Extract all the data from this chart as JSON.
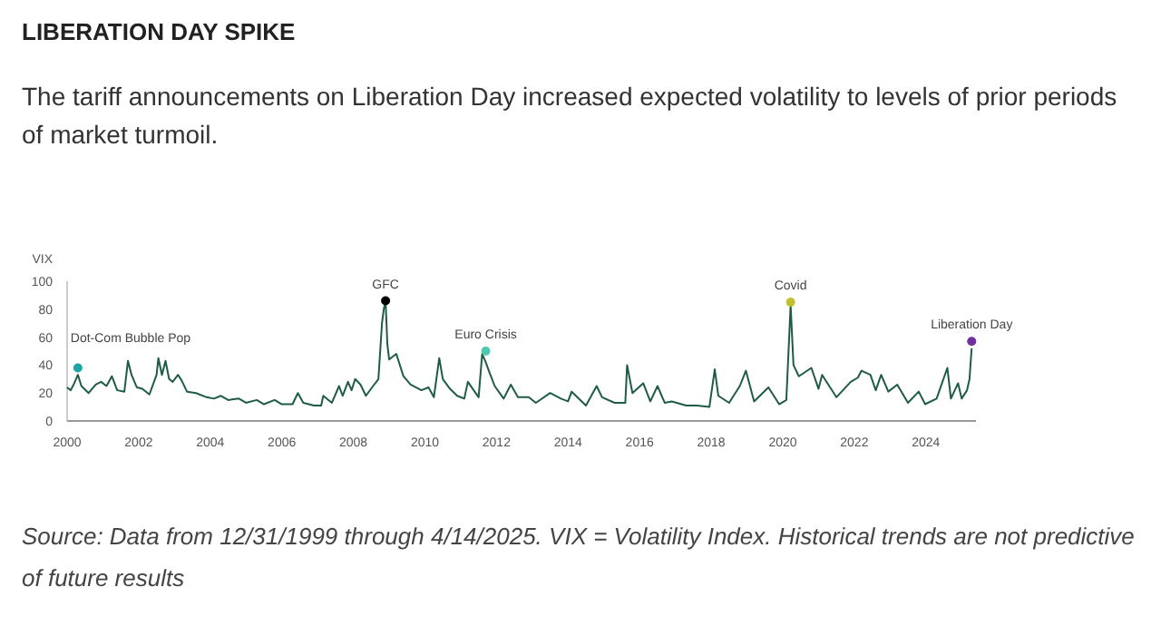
{
  "chart_data": {
    "type": "line",
    "title": "LIBERATION DAY SPIKE",
    "subtitle": "The tariff announcements on Liberation Day increased expected volatility to levels of prior periods of market turmoil.",
    "ylabel": "VIX",
    "xlim": [
      2000,
      2025.4
    ],
    "xticks": [
      2000,
      2002,
      2004,
      2006,
      2008,
      2010,
      2012,
      2014,
      2016,
      2018,
      2020,
      2022,
      2024
    ],
    "ylim": [
      0,
      100
    ],
    "yticks": [
      0,
      20,
      40,
      60,
      80,
      100
    ],
    "grid": false,
    "line_style": "solid",
    "series": [
      {
        "color": "#1f5c45",
        "x": [
          2000.0,
          2000.1,
          2000.2,
          2000.3,
          2000.4,
          2000.6,
          2000.8,
          2000.95,
          2001.1,
          2001.25,
          2001.4,
          2001.6,
          2001.7,
          2001.8,
          2001.95,
          2002.1,
          2002.3,
          2002.5,
          2002.55,
          2002.65,
          2002.75,
          2002.85,
          2002.95,
          2003.1,
          2003.2,
          2003.35,
          2003.6,
          2003.9,
          2004.1,
          2004.3,
          2004.5,
          2004.8,
          2005.0,
          2005.3,
          2005.5,
          2005.8,
          2006.0,
          2006.3,
          2006.45,
          2006.6,
          2006.9,
          2007.1,
          2007.16,
          2007.4,
          2007.6,
          2007.7,
          2007.85,
          2007.95,
          2008.05,
          2008.2,
          2008.35,
          2008.55,
          2008.7,
          2008.8,
          2008.85,
          2008.9,
          2008.95,
          2009.0,
          2009.2,
          2009.4,
          2009.6,
          2009.9,
          2010.1,
          2010.25,
          2010.4,
          2010.5,
          2010.7,
          2010.9,
          2011.1,
          2011.2,
          2011.5,
          2011.6,
          2011.7,
          2011.8,
          2011.95,
          2012.2,
          2012.4,
          2012.6,
          2012.9,
          2013.1,
          2013.5,
          2013.8,
          2014.0,
          2014.1,
          2014.5,
          2014.8,
          2014.95,
          2015.3,
          2015.6,
          2015.65,
          2015.8,
          2016.1,
          2016.3,
          2016.5,
          2016.7,
          2016.9,
          2017.3,
          2017.6,
          2017.95,
          2018.1,
          2018.2,
          2018.5,
          2018.8,
          2018.97,
          2019.2,
          2019.6,
          2019.9,
          2020.1,
          2020.18,
          2020.22,
          2020.3,
          2020.45,
          2020.8,
          2021.0,
          2021.1,
          2021.5,
          2021.9,
          2022.1,
          2022.2,
          2022.45,
          2022.6,
          2022.75,
          2022.95,
          2023.2,
          2023.5,
          2023.8,
          2023.98,
          2024.3,
          2024.6,
          2024.7,
          2024.9,
          2025.0,
          2025.15,
          2025.22,
          2025.26,
          2025.28
        ],
        "values": [
          24,
          22,
          27,
          33,
          25,
          20,
          26,
          28,
          25,
          32,
          22,
          21,
          43,
          33,
          24,
          23,
          19,
          33,
          45,
          33,
          43,
          30,
          28,
          33,
          29,
          21,
          20,
          17,
          16,
          18,
          15,
          16,
          13,
          15,
          12,
          15,
          12,
          12,
          20,
          13,
          11,
          11,
          18,
          13,
          25,
          18,
          28,
          22,
          30,
          26,
          18,
          25,
          30,
          70,
          80,
          86,
          55,
          44,
          48,
          32,
          26,
          22,
          24,
          17,
          45,
          30,
          23,
          18,
          16,
          28,
          17,
          48,
          42,
          35,
          25,
          16,
          26,
          17,
          17,
          13,
          20,
          16,
          14,
          21,
          11,
          25,
          17,
          13,
          13,
          40,
          20,
          27,
          14,
          25,
          13,
          14,
          11,
          11,
          10,
          37,
          18,
          13,
          25,
          36,
          14,
          24,
          12,
          15,
          60,
          83,
          40,
          32,
          38,
          23,
          33,
          17,
          28,
          31,
          36,
          33,
          22,
          33,
          21,
          26,
          13,
          21,
          12,
          16,
          38,
          16,
          27,
          16,
          22,
          30,
          45,
          52
        ]
      },
      {
        "type": "scatter",
        "color": "#1fa3a3",
        "x": [
          2000.3
        ],
        "values": [
          38
        ]
      },
      {
        "type": "scatter",
        "color": "#000000",
        "x": [
          2008.9
        ],
        "values": [
          86
        ]
      },
      {
        "type": "scatter",
        "color": "#4ec9b0",
        "x": [
          2011.7
        ],
        "values": [
          50
        ]
      },
      {
        "type": "scatter",
        "color": "#c0c030",
        "x": [
          2020.22
        ],
        "values": [
          85
        ]
      },
      {
        "type": "scatter",
        "color": "#7030a0",
        "x": [
          2025.28
        ],
        "values": [
          57
        ]
      }
    ],
    "annotations": [
      {
        "text": "Dot-Com Bubble Pop",
        "x": 2000.3,
        "y": 38
      },
      {
        "text": "GFC",
        "x": 2008.9,
        "y": 86
      },
      {
        "text": "Euro Crisis",
        "x": 2011.7,
        "y": 50
      },
      {
        "text": "Covid",
        "x": 2020.22,
        "y": 85
      },
      {
        "text": "Liberation Day",
        "x": 2025.28,
        "y": 57
      },
      "Source: Data from 12/31/1999 through 4/14/2025. VIX = Volatility Index. Historical trends are not predictive of future results"
    ]
  }
}
